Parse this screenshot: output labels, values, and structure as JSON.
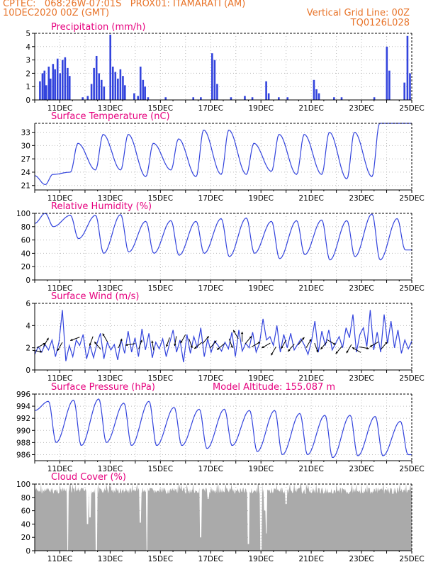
{
  "header": {
    "line1_left": "CPTEC:   068:26W-07:01S   PROX01: ITAMARATI (AM)",
    "line2_left": "10DEC2020 00Z (GMT)",
    "line2_right": "Vertical Grid Line: 00Z",
    "line3_right": "TQ0126L028"
  },
  "colors": {
    "header": "#e8742a",
    "title": "#e6007e",
    "series": "#3344dd",
    "cloud": "#aaaaaa",
    "grid": "#bbbbbb"
  },
  "x_tick_labels": [
    "11DEC",
    "13DEC",
    "15DEC",
    "17DEC",
    "19DEC",
    "21DEC",
    "23DEC",
    "25DEC"
  ],
  "chart_data": [
    {
      "type": "bar",
      "title": "Precipitation (mm/h)",
      "ylim": [
        0,
        5
      ],
      "yticks": [
        "0",
        "1",
        "2",
        "3",
        "4",
        "5"
      ],
      "x_range_days": [
        0,
        15
      ],
      "bars": [
        [
          0.2,
          1.4
        ],
        [
          0.3,
          2.0
        ],
        [
          0.38,
          2.2
        ],
        [
          0.45,
          1.1
        ],
        [
          0.55,
          2.5
        ],
        [
          0.62,
          1.6
        ],
        [
          0.72,
          2.7
        ],
        [
          0.8,
          2.3
        ],
        [
          0.9,
          3.1
        ],
        [
          1.0,
          2.0
        ],
        [
          1.1,
          3.0
        ],
        [
          1.2,
          3.2
        ],
        [
          1.3,
          2.4
        ],
        [
          1.38,
          1.8
        ],
        [
          1.9,
          0.2
        ],
        [
          2.1,
          0.3
        ],
        [
          2.25,
          1.2
        ],
        [
          2.35,
          2.4
        ],
        [
          2.45,
          3.3
        ],
        [
          2.55,
          2.0
        ],
        [
          2.65,
          1.5
        ],
        [
          2.75,
          1.0
        ],
        [
          3.0,
          4.9
        ],
        [
          3.1,
          2.5
        ],
        [
          3.2,
          2.1
        ],
        [
          3.3,
          1.6
        ],
        [
          3.4,
          2.3
        ],
        [
          3.5,
          1.8
        ],
        [
          3.58,
          1.1
        ],
        [
          3.95,
          0.5
        ],
        [
          4.1,
          0.3
        ],
        [
          4.2,
          2.5
        ],
        [
          4.3,
          1.5
        ],
        [
          4.38,
          1.0
        ],
        [
          4.5,
          0.2
        ],
        [
          5.2,
          0.2
        ],
        [
          6.3,
          0.2
        ],
        [
          6.6,
          0.2
        ],
        [
          7.05,
          3.5
        ],
        [
          7.15,
          3.0
        ],
        [
          7.25,
          1.2
        ],
        [
          7.8,
          0.2
        ],
        [
          8.35,
          0.3
        ],
        [
          8.65,
          0.2
        ],
        [
          9.2,
          1.4
        ],
        [
          9.3,
          0.5
        ],
        [
          9.7,
          0.2
        ],
        [
          10.05,
          0.2
        ],
        [
          11.1,
          1.5
        ],
        [
          11.2,
          0.8
        ],
        [
          11.3,
          0.5
        ],
        [
          11.9,
          0.2
        ],
        [
          12.2,
          0.2
        ],
        [
          13.5,
          0.2
        ],
        [
          14.0,
          4.0
        ],
        [
          14.1,
          2.2
        ],
        [
          14.7,
          1.3
        ],
        [
          14.82,
          4.8
        ],
        [
          14.92,
          2.0
        ]
      ]
    },
    {
      "type": "line",
      "title": "Surface Temperature (nC)",
      "ylim": [
        20,
        35
      ],
      "yticks": [
        "21",
        "24",
        "27",
        "30",
        "33"
      ],
      "daily_max": [
        23.5,
        30.5,
        32.5,
        32.5,
        30.5,
        31.5,
        33.5,
        33.5,
        30.5,
        32.5,
        32.5,
        33,
        33,
        35,
        35
      ],
      "daily_min": [
        21.2,
        24,
        24.5,
        24.5,
        23,
        24.5,
        23,
        23.5,
        23.5,
        24.2,
        23.5,
        23.5,
        22.5,
        23
      ],
      "values_start": 23.2
    },
    {
      "type": "line",
      "title": "Relative Humidity (%)",
      "ylim": [
        0,
        100
      ],
      "yticks": [
        "0",
        "20",
        "40",
        "60",
        "80",
        "100"
      ],
      "daily_max": [
        100,
        97,
        97,
        98,
        88,
        89,
        88,
        92,
        93,
        88,
        89,
        90,
        89,
        99,
        92
      ],
      "daily_min": [
        80,
        62,
        40,
        42,
        40,
        37,
        40,
        35,
        40,
        32,
        38,
        30,
        35,
        30,
        45
      ],
      "values_start": 85
    },
    {
      "type": "line",
      "title": "Surface Wind (m/s)",
      "ylim": [
        0,
        6
      ],
      "yticks": [
        "0",
        "2",
        "4",
        "6"
      ],
      "values": [
        1.4,
        2.1,
        1.6,
        2.3,
        1.8,
        2.7,
        1.2,
        2.5,
        5.4,
        0.8,
        2.2,
        1.2,
        2.7,
        2.2,
        3.2,
        1.0,
        2.2,
        1.1,
        2.4,
        3.3,
        1.0,
        2.5,
        1.8,
        2.3,
        0.9,
        2.7,
        1.5,
        3.5,
        1.6,
        2.9,
        1.2,
        3.7,
        1.8,
        3.3,
        1.1,
        2.5,
        1.9,
        2.8,
        1.2,
        2.4,
        3.6,
        1.6,
        2.7,
        0.7,
        3.2,
        1.5,
        3.0,
        2.0,
        3.8,
        1.2,
        2.8,
        1.6,
        2.6,
        2.2,
        1.7,
        2.5,
        1.9,
        3.4,
        1.2,
        3.6,
        1.7,
        2.4,
        2.0,
        3.4,
        1.6,
        2.4,
        4.6,
        2.7,
        3.0,
        2.2,
        4.0,
        1.6,
        3.2,
        2.0,
        3.3,
        1.8,
        2.3,
        2.8,
        2.2,
        1.4,
        2.6,
        4.4,
        1.6,
        3.5,
        2.2,
        3.6,
        1.8,
        2.4,
        3.0,
        2.0,
        3.8,
        2.9,
        5.0,
        1.6,
        3.2,
        3.8,
        2.1,
        5.4,
        1.8,
        3.4,
        1.6,
        5.0,
        2.4,
        4.4,
        2.0,
        3.6,
        1.5,
        2.7,
        1.9,
        2.6
      ],
      "arrows": [
        [
          0.1,
          1.7,
          100
        ],
        [
          0.25,
          2.2,
          60
        ],
        [
          0.45,
          2.5,
          30
        ],
        [
          1.0,
          2.1,
          210
        ],
        [
          1.6,
          2.8,
          250
        ],
        [
          2.25,
          2.6,
          200
        ],
        [
          2.5,
          2.2,
          320
        ],
        [
          2.8,
          2.9,
          330
        ],
        [
          3.4,
          2.4,
          20
        ],
        [
          3.8,
          2.3,
          260
        ],
        [
          4.2,
          2.3,
          20
        ],
        [
          4.7,
          2.2,
          350
        ],
        [
          5.3,
          2.5,
          200
        ],
        [
          5.6,
          2.6,
          190
        ],
        [
          5.9,
          2.8,
          210
        ],
        [
          6.2,
          2.4,
          160
        ],
        [
          6.5,
          2.2,
          230
        ],
        [
          6.8,
          2.7,
          40
        ],
        [
          7.1,
          2.3,
          40
        ],
        [
          7.4,
          2.1,
          230
        ],
        [
          7.8,
          2.4,
          160
        ],
        [
          8.0,
          3.2,
          330
        ],
        [
          8.25,
          3.0,
          0
        ],
        [
          8.5,
          2.7,
          40
        ],
        [
          8.8,
          2.3,
          60
        ],
        [
          9.2,
          2.2,
          240
        ],
        [
          9.5,
          1.7,
          210
        ],
        [
          9.9,
          2.3,
          210
        ],
        [
          10.2,
          2.0,
          220
        ],
        [
          10.6,
          2.6,
          40
        ],
        [
          10.9,
          2.4,
          30
        ],
        [
          11.2,
          2.0,
          160
        ],
        [
          11.5,
          2.2,
          220
        ],
        [
          11.8,
          2.5,
          120
        ],
        [
          12.1,
          1.8,
          220
        ],
        [
          12.5,
          1.9,
          210
        ],
        [
          12.8,
          1.8,
          300
        ],
        [
          13.1,
          2.0,
          100
        ],
        [
          13.5,
          2.3,
          240
        ],
        [
          13.9,
          2.2,
          40
        ]
      ]
    },
    {
      "type": "line",
      "title": "Surface Pressure (hPa)",
      "annotation": "Model Altitude: 155.087  m",
      "ylim": [
        985,
        996
      ],
      "yticks": [
        "986",
        "988",
        "990",
        "992",
        "994",
        "996"
      ],
      "daily_max": [
        994.8,
        995,
        995.2,
        994.5,
        994.8,
        993.8,
        993.5,
        993.5,
        993.3,
        993.3,
        992.8,
        992.5,
        992.5,
        992.3,
        991.5
      ],
      "daily_min": [
        988,
        987.5,
        988,
        987.5,
        987.5,
        987.5,
        987,
        987.5,
        986.5,
        986,
        986,
        985.5,
        985.8,
        985.8,
        986
      ],
      "values_start": 993.3
    },
    {
      "type": "area",
      "title": "Cloud Cover (%)",
      "ylim": [
        0,
        100
      ],
      "yticks": [
        "0",
        "20",
        "40",
        "60",
        "80",
        "100"
      ],
      "baseline": 95,
      "gaps": [
        [
          1.32,
          0
        ],
        [
          2.1,
          40
        ],
        [
          2.2,
          50
        ],
        [
          2.45,
          0
        ],
        [
          4.2,
          42
        ],
        [
          4.47,
          0
        ],
        [
          4.9,
          90
        ],
        [
          6.6,
          20
        ],
        [
          6.9,
          78
        ],
        [
          8.5,
          10
        ],
        [
          9.0,
          0
        ],
        [
          9.2,
          26
        ],
        [
          9.15,
          60
        ],
        [
          10.0,
          70
        ]
      ]
    }
  ],
  "panels": [
    {
      "title": "Precipitation (mm/h)"
    },
    {
      "title": "Surface Temperature (nC)"
    },
    {
      "title": "Relative Humidity (%)"
    },
    {
      "title": "Surface Wind (m/s)"
    },
    {
      "title": "Surface Pressure (hPa)",
      "annotation": "Model Altitude: 155.087  m"
    },
    {
      "title": "Cloud Cover (%)"
    }
  ]
}
